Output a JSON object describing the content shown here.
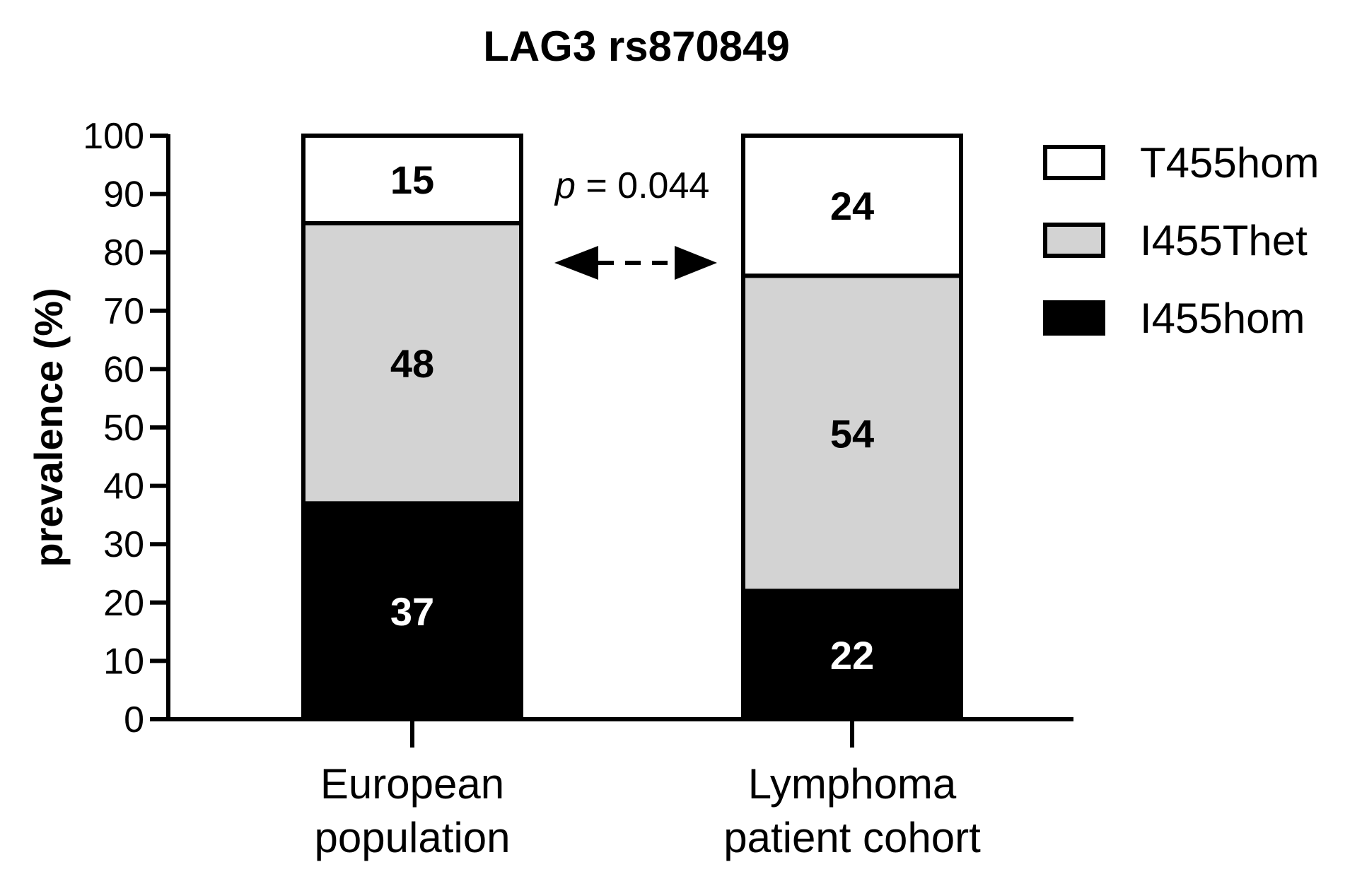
{
  "chart_data": {
    "type": "bar",
    "stacked": true,
    "title": "LAG3 rs870849",
    "ylabel": "prevalence (%)",
    "xlabel": "",
    "ylim": [
      0,
      100
    ],
    "yticks": [
      0,
      10,
      20,
      30,
      40,
      50,
      60,
      70,
      80,
      90,
      100
    ],
    "grid": false,
    "legend": "right",
    "categories": [
      {
        "line1": "European",
        "line2": "population"
      },
      {
        "line1": "Lymphoma",
        "line2": "patient cohort"
      }
    ],
    "series": [
      {
        "name": "I455hom",
        "values": [
          37,
          22
        ],
        "color": "#000000",
        "label_color": "#ffffff"
      },
      {
        "name": "I455Thet",
        "values": [
          48,
          54
        ],
        "color": "#d3d3d3",
        "label_color": "#000000"
      },
      {
        "name": "T455hom",
        "values": [
          15,
          24
        ],
        "color": "#ffffff",
        "label_color": "#000000"
      }
    ],
    "annotation": {
      "p_symbol": "p",
      "p_value": " = 0.044"
    }
  }
}
